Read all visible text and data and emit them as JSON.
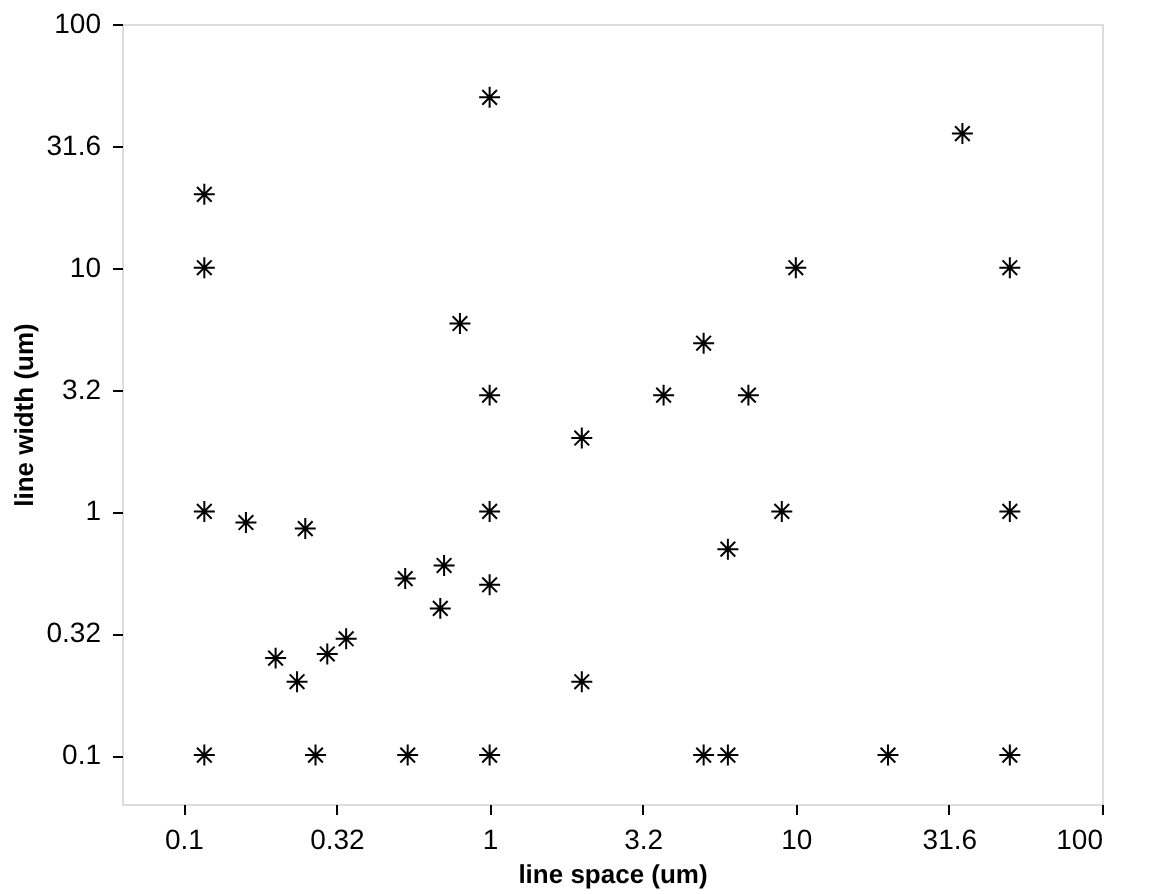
{
  "chart_data": {
    "type": "scatter",
    "xlabel": "line space (um)",
    "ylabel": "line width (um)",
    "x": [
      0.117,
      0.117,
      1,
      0.8,
      1,
      35,
      50,
      10,
      5.0,
      3.7,
      7.0,
      2.0,
      0.117,
      0.16,
      0.25,
      0.53,
      0.71,
      0.69,
      1,
      1,
      0.2,
      0.235,
      0.295,
      0.34,
      0.117,
      0.27,
      0.54,
      1,
      2.0,
      6.0,
      9.0,
      50,
      5.0,
      6.0,
      20,
      50
    ],
    "values": [
      20,
      10,
      50,
      5.9,
      3.0,
      35.5,
      10,
      10,
      4.9,
      3.0,
      3.0,
      2.0,
      1,
      0.9,
      0.85,
      0.53,
      0.6,
      0.4,
      1,
      0.5,
      0.25,
      0.2,
      0.26,
      0.3,
      0.1,
      0.1,
      0.1,
      0.1,
      0.2,
      0.7,
      1,
      1,
      0.1,
      0.1,
      0.1,
      0.1
    ],
    "color": "#000000",
    "marker": "cross",
    "log": "xy",
    "grid": false,
    "xlim": [
      0.063,
      100
    ],
    "ylim": [
      0.063,
      100
    ],
    "xticks": [
      0.1,
      {
        "value": 0.316,
        "label": "0.32"
      },
      1,
      {
        "value": 3.16,
        "label": "3.2"
      },
      10,
      31.6,
      100
    ],
    "yticks": [
      0.1,
      {
        "value": 0.316,
        "label": "0.32"
      },
      1,
      {
        "value": 3.16,
        "label": "3.2"
      },
      10,
      31.6,
      100
    ]
  }
}
